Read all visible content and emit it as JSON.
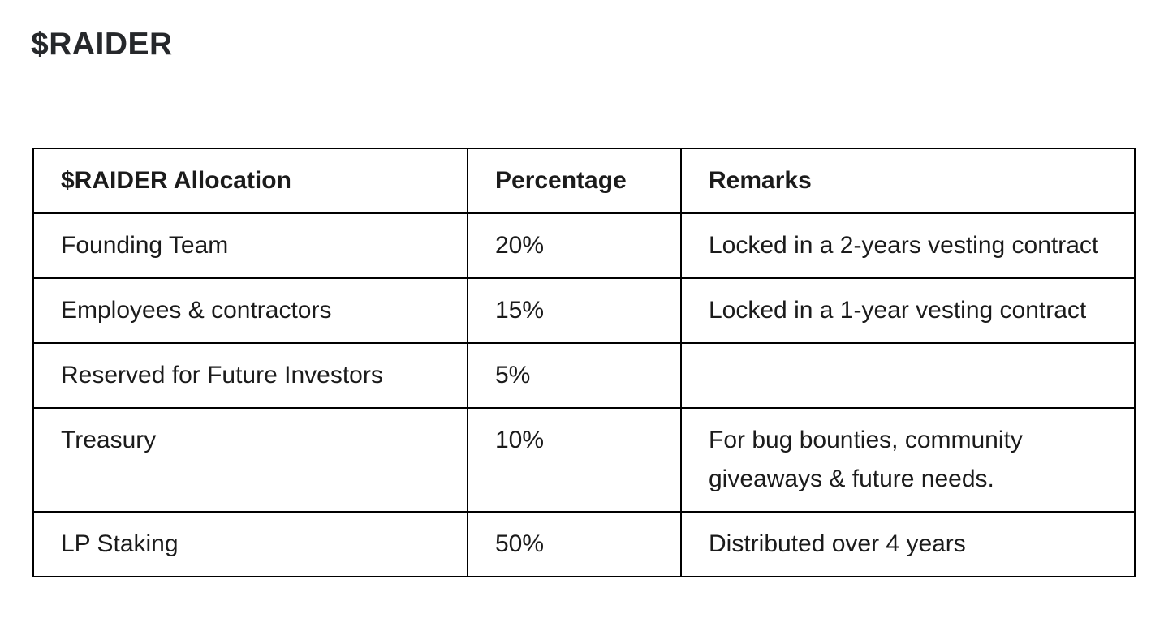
{
  "page": {
    "title": "$RAIDER"
  },
  "table": {
    "header": {
      "allocation": "$RAIDER Allocation",
      "percentage": "Percentage",
      "remarks": "Remarks"
    },
    "rows": [
      {
        "allocation": "Founding Team",
        "percentage": "20%",
        "remarks": "Locked in a 2-years vesting contract"
      },
      {
        "allocation": "Employees & contractors",
        "percentage": "15%",
        "remarks": "Locked in a 1-year vesting contract"
      },
      {
        "allocation": "Reserved for Future Investors",
        "percentage": "5%",
        "remarks": ""
      },
      {
        "allocation": "Treasury",
        "percentage": "10%",
        "remarks": "For bug bounties, community giveaways & future needs."
      },
      {
        "allocation": "LP Staking",
        "percentage": "50%",
        "remarks": "Distributed over 4 years"
      }
    ]
  },
  "colors": {
    "background": "#ffffff",
    "border": "#000000",
    "text": "#1b1b1b",
    "title": "#26282b"
  }
}
